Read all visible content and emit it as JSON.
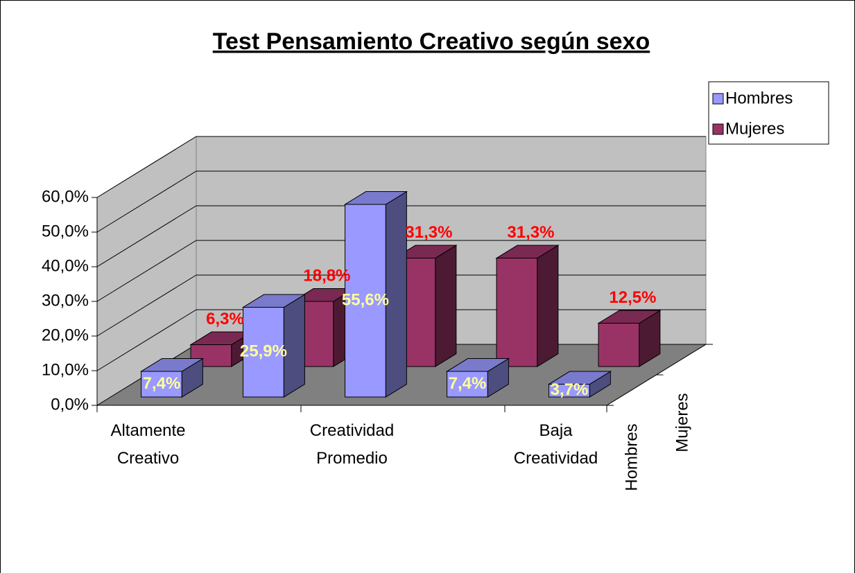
{
  "chart_data": {
    "type": "bar3d",
    "title": "Test Pensamiento Creativo según sexo",
    "categories": [
      "Altamente Creativo",
      null,
      "Creatividad Promedio",
      null,
      "Baja Creatividad"
    ],
    "series": [
      {
        "name": "Hombres",
        "color": "#9999ff",
        "values": [
          7.4,
          25.9,
          55.6,
          7.4,
          3.7
        ],
        "value_labels": [
          "7,4%",
          "25,9%",
          "55,6%",
          "7,4%",
          "3,7%"
        ],
        "label_color": "#ffff99"
      },
      {
        "name": "Mujeres",
        "color": "#993366",
        "values": [
          6.3,
          18.8,
          31.3,
          31.3,
          12.5
        ],
        "value_labels": [
          "6,3%",
          "18,8%",
          "31,3%",
          "31,3%",
          "12,5%"
        ],
        "label_color": "#ff0000"
      }
    ],
    "ylim": [
      0,
      60
    ],
    "yticks": [
      {
        "value": 0,
        "label": "0,0%"
      },
      {
        "value": 10,
        "label": "10,0%"
      },
      {
        "value": 20,
        "label": "20,0%"
      },
      {
        "value": 30,
        "label": "30,0%"
      },
      {
        "value": 40,
        "label": "40,0%"
      },
      {
        "value": 50,
        "label": "50,0%"
      },
      {
        "value": 60,
        "label": "60,0%"
      }
    ],
    "grid": true,
    "legend": "top-right"
  }
}
